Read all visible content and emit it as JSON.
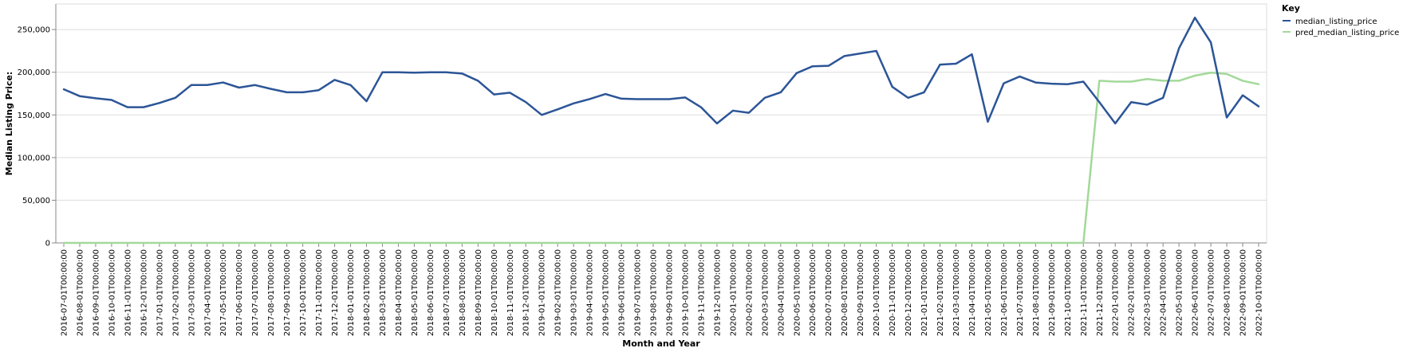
{
  "chart_data": {
    "type": "line",
    "xlabel": "Month and Year",
    "ylabel": "Median Listing Price:",
    "ylim": [
      0,
      280000
    ],
    "yticks": [
      0,
      50000,
      100000,
      150000,
      200000,
      250000
    ],
    "grid": true,
    "legend_title": "Key",
    "legend_position": "top-right",
    "x": [
      "2016-07-01T00:00:00",
      "2016-08-01T00:00:00",
      "2016-09-01T00:00:00",
      "2016-10-01T00:00:00",
      "2016-11-01T00:00:00",
      "2016-12-01T00:00:00",
      "2017-01-01T00:00:00",
      "2017-02-01T00:00:00",
      "2017-03-01T00:00:00",
      "2017-04-01T00:00:00",
      "2017-05-01T00:00:00",
      "2017-06-01T00:00:00",
      "2017-07-01T00:00:00",
      "2017-08-01T00:00:00",
      "2017-09-01T00:00:00",
      "2017-10-01T00:00:00",
      "2017-11-01T00:00:00",
      "2017-12-01T00:00:00",
      "2018-01-01T00:00:00",
      "2018-02-01T00:00:00",
      "2018-03-01T00:00:00",
      "2018-04-01T00:00:00",
      "2018-05-01T00:00:00",
      "2018-06-01T00:00:00",
      "2018-07-01T00:00:00",
      "2018-08-01T00:00:00",
      "2018-09-01T00:00:00",
      "2018-10-01T00:00:00",
      "2018-11-01T00:00:00",
      "2018-12-01T00:00:00",
      "2019-01-01T00:00:00",
      "2019-02-01T00:00:00",
      "2019-03-01T00:00:00",
      "2019-04-01T00:00:00",
      "2019-05-01T00:00:00",
      "2019-06-01T00:00:00",
      "2019-07-01T00:00:00",
      "2019-08-01T00:00:00",
      "2019-09-01T00:00:00",
      "2019-10-01T00:00:00",
      "2019-11-01T00:00:00",
      "2019-12-01T00:00:00",
      "2020-01-01T00:00:00",
      "2020-02-01T00:00:00",
      "2020-03-01T00:00:00",
      "2020-04-01T00:00:00",
      "2020-05-01T00:00:00",
      "2020-06-01T00:00:00",
      "2020-07-01T00:00:00",
      "2020-08-01T00:00:00",
      "2020-09-01T00:00:00",
      "2020-10-01T00:00:00",
      "2020-11-01T00:00:00",
      "2020-12-01T00:00:00",
      "2021-01-01T00:00:00",
      "2021-02-01T00:00:00",
      "2021-03-01T00:00:00",
      "2021-04-01T00:00:00",
      "2021-05-01T00:00:00",
      "2021-06-01T00:00:00",
      "2021-07-01T00:00:00",
      "2021-08-01T00:00:00",
      "2021-09-01T00:00:00",
      "2021-10-01T00:00:00",
      "2021-11-01T00:00:00",
      "2021-12-01T00:00:00",
      "2022-01-01T00:00:00",
      "2022-02-01T00:00:00",
      "2022-03-01T00:00:00",
      "2022-04-01T00:00:00",
      "2022-05-01T00:00:00",
      "2022-06-01T00:00:00",
      "2022-07-01T00:00:00",
      "2022-08-01T00:00:00",
      "2022-09-01T00:00:00",
      "2022-10-01T00:00:00"
    ],
    "series": [
      {
        "name": "median_listing_price",
        "color": "#2c5597",
        "values": [
          180000,
          172000,
          169500,
          167500,
          159000,
          159000,
          164000,
          170000,
          185000,
          185000,
          188000,
          182000,
          185000,
          180500,
          176500,
          176500,
          179000,
          191000,
          185000,
          166000,
          200000,
          200000,
          199500,
          200000,
          200000,
          198500,
          190000,
          174000,
          176000,
          165000,
          150000,
          156500,
          163500,
          168500,
          174500,
          169000,
          168500,
          168500,
          168500,
          170500,
          159000,
          140000,
          155000,
          152500,
          170000,
          176500,
          199000,
          207000,
          207500,
          219000,
          222000,
          225000,
          183000,
          170000,
          176500,
          209000,
          210000,
          221000,
          142000,
          187000,
          195000,
          188000,
          186500,
          186000,
          189000,
          165000,
          140000,
          165000,
          162000,
          170000,
          228000,
          264000,
          235000,
          147000,
          173000,
          160000
        ]
      },
      {
        "name": "pred_median_listing_price",
        "color": "#a3d99a",
        "values": [
          0,
          0,
          0,
          0,
          0,
          0,
          0,
          0,
          0,
          0,
          0,
          0,
          0,
          0,
          0,
          0,
          0,
          0,
          0,
          0,
          0,
          0,
          0,
          0,
          0,
          0,
          0,
          0,
          0,
          0,
          0,
          0,
          0,
          0,
          0,
          0,
          0,
          0,
          0,
          0,
          0,
          0,
          0,
          0,
          0,
          0,
          0,
          0,
          0,
          0,
          0,
          0,
          0,
          0,
          0,
          0,
          0,
          0,
          0,
          0,
          0,
          0,
          0,
          0,
          0,
          190000,
          189000,
          189000,
          192000,
          190000,
          190000,
          196000,
          199500,
          198000,
          190000,
          186000
        ]
      }
    ]
  }
}
